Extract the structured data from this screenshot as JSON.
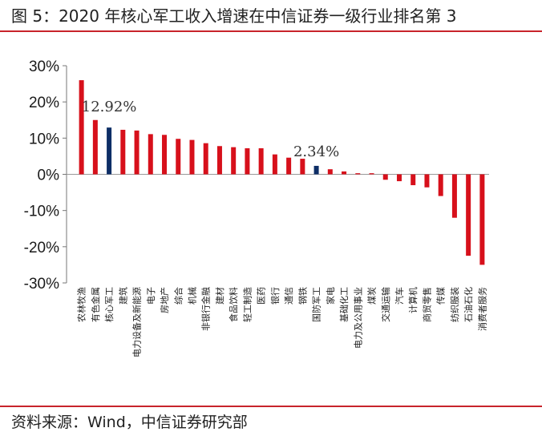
{
  "figure": {
    "title": "图 5：2020 年核心军工收入增速在中信证券一级行业排名第 3",
    "source": "资料来源：Wind，中信证券研究部"
  },
  "colors": {
    "accent": "#c8242b",
    "bar": "#d7101b",
    "highlight": "#0d2e66",
    "rule": "#c8242b"
  },
  "chart_data": {
    "type": "bar",
    "title": "2020 年核心军工收入增速在中信证券一级行业排名第 3",
    "xlabel": "",
    "ylabel": "",
    "ylim": [
      -30,
      30
    ],
    "yticks": [
      "30%",
      "20%",
      "10%",
      "0%",
      "-10%",
      "-20%",
      "-30%"
    ],
    "grid": false,
    "legend": "none",
    "categories": [
      "农林牧渔",
      "有色金属",
      "核心军工",
      "建筑",
      "电力设备及新能源",
      "电子",
      "房地产",
      "综合",
      "机械",
      "非银行金融",
      "建材",
      "食品饮料",
      "轻工制造",
      "医药",
      "银行",
      "通信",
      "钢铁",
      "国防军工",
      "家电",
      "基础化工",
      "电力及公用事业",
      "煤炭",
      "交通运输",
      "汽车",
      "计算机",
      "商贸零售",
      "传媒",
      "纺织服装",
      "石油石化",
      "消费者服务"
    ],
    "values": [
      26.0,
      15.0,
      12.92,
      12.3,
      12.1,
      11.1,
      10.9,
      9.8,
      9.5,
      8.6,
      7.8,
      7.5,
      7.2,
      7.2,
      5.5,
      4.6,
      4.3,
      2.34,
      1.4,
      0.8,
      0.3,
      0.3,
      -1.5,
      -1.9,
      -3.0,
      -3.6,
      -6.0,
      -12.0,
      -22.5,
      -25.0
    ],
    "highlighted": [
      "核心军工",
      "国防军工"
    ],
    "annotations": [
      {
        "category": "核心军工",
        "text": "12.92%"
      },
      {
        "category": "国防军工",
        "text": "2.34%"
      }
    ]
  }
}
